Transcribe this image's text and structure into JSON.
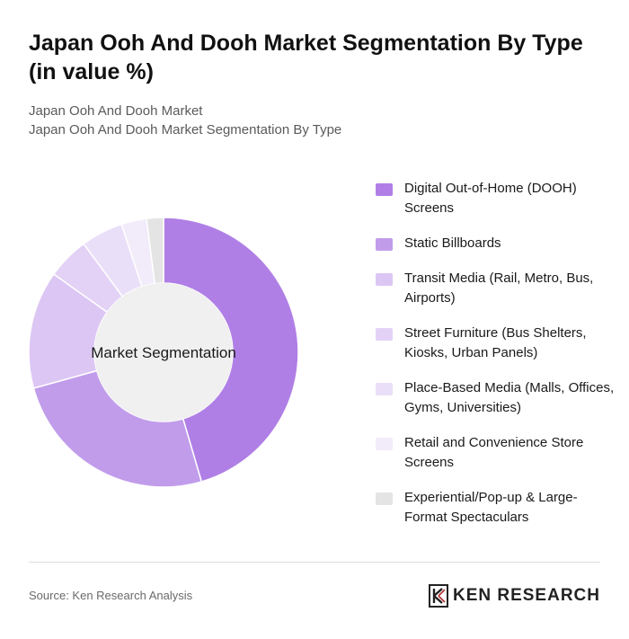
{
  "header": {
    "title": "Japan Ooh And Dooh Market Segmentation By Type (in value %)",
    "subtitle_line1": "Japan Ooh And Dooh Market",
    "subtitle_line2": "Japan Ooh And Dooh Market Segmentation By Type"
  },
  "chart_data": {
    "type": "pie",
    "center_label": "Market Segmentation",
    "legend_position": "right",
    "categories": [
      "Digital Out-of-Home (DOOH) Screens",
      "Static Billboards",
      "Transit Media (Rail, Metro, Bus, Airports)",
      "Street Furniture (Bus Shelters, Kiosks, Urban Panels)",
      "Place-Based Media (Malls, Offices, Gyms, Universities)",
      "Retail and Convenience Store Screens",
      "Experiential/Pop-up & Large-Format Spectaculars"
    ],
    "values": [
      45,
      25,
      14,
      5,
      5,
      3,
      2
    ],
    "colors": [
      "#b07fe6",
      "#c19ceb",
      "#dcc6f4",
      "#e3d2f6",
      "#eadff8",
      "#f1ebfa",
      "#e4e4e4"
    ]
  },
  "footer": {
    "source": "Source: Ken Research Analysis",
    "brand": "KEN RESEARCH"
  }
}
